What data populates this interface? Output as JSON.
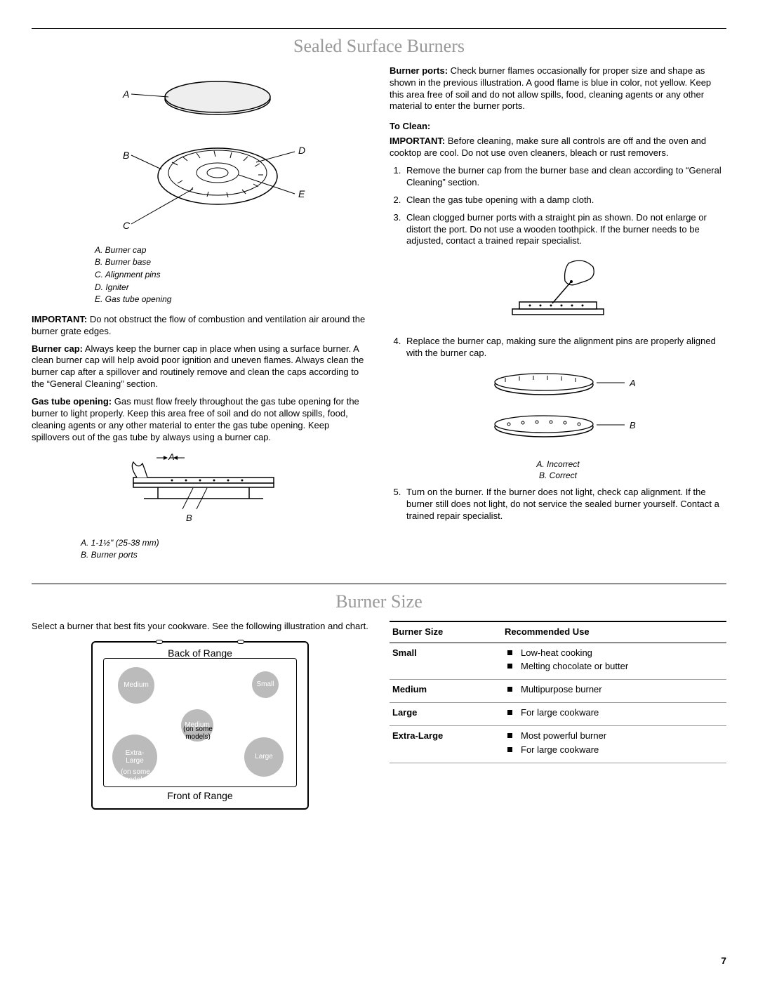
{
  "section1": {
    "title": "Sealed Surface Burners",
    "diagram1": {
      "labels": {
        "A": "A",
        "B": "B",
        "C": "C",
        "D": "D",
        "E": "E"
      },
      "legend": [
        "A. Burner cap",
        "B. Burner base",
        "C. Alignment pins",
        "D. Igniter",
        "E. Gas tube opening"
      ]
    },
    "left_paras": [
      {
        "lead": "IMPORTANT:",
        "text": " Do not obstruct the flow of combustion and ventilation air around the burner grate edges."
      },
      {
        "lead": "Burner cap:",
        "text": " Always keep the burner cap in place when using a surface burner. A clean burner cap will help avoid poor ignition and uneven flames. Always clean the burner cap after a spillover and routinely remove and clean the caps according to the “General Cleaning” section."
      },
      {
        "lead": "Gas tube opening:",
        "text": " Gas must flow freely throughout the gas tube opening for the burner to light properly. Keep this area free of soil and do not allow spills, food, cleaning agents or any other material to enter the gas tube opening. Keep spillovers out of the gas tube by always using a burner cap."
      }
    ],
    "diagram2": {
      "A": "A",
      "B": "B",
      "legend": [
        "A. 1-1½\" (25-38 mm)",
        "B. Burner ports"
      ]
    },
    "right_paras": [
      {
        "lead": "Burner ports:",
        "text": " Check burner flames occasionally for proper size and shape as shown in the previous illustration. A good flame is blue in color, not yellow. Keep this area free of soil and do not allow spills, food, cleaning agents or any other material to enter the burner ports."
      }
    ],
    "to_clean_head": "To Clean:",
    "to_clean_important": {
      "lead": "IMPORTANT:",
      "text": " Before cleaning, make sure all controls are off and the oven and cooktop are cool. Do not use oven cleaners, bleach or rust removers."
    },
    "clean_steps": [
      "Remove the burner cap from the burner base and clean according to “General Cleaning” section.",
      "Clean the gas tube opening with a damp cloth.",
      "Clean clogged burner ports with a straight pin as shown. Do not enlarge or distort the port. Do not use a wooden toothpick. If the burner needs to be adjusted, contact a trained repair specialist.",
      "Replace the burner cap, making sure the alignment pins are properly aligned with the burner cap.",
      "Turn on the burner. If the burner does not light, check cap alignment. If the burner still does not light, do not service the sealed burner yourself. Contact a trained repair specialist."
    ],
    "align_diagram": {
      "A": "A",
      "B": "B",
      "legend": [
        "A. Incorrect",
        "B. Correct"
      ]
    }
  },
  "section2": {
    "title": "Burner Size",
    "intro": "Select a burner that best fits your cookware. See the following illustration and chart.",
    "range": {
      "back": "Back of Range",
      "front": "Front of Range",
      "burners": {
        "medium1": "Medium",
        "small": "Small",
        "medium2": "Medium",
        "extra": "Extra-\nLarge",
        "large": "Large"
      },
      "note1": "(on some\nmodels)",
      "note2": "(on some\nmodels)"
    },
    "table": {
      "headers": [
        "Burner Size",
        "Recommended Use"
      ],
      "rows": [
        {
          "size": "Small",
          "uses": [
            "Low-heat cooking",
            "Melting chocolate or butter"
          ]
        },
        {
          "size": "Medium",
          "uses": [
            "Multipurpose burner"
          ]
        },
        {
          "size": "Large",
          "uses": [
            "For large cookware"
          ]
        },
        {
          "size": "Extra-Large",
          "uses": [
            "Most powerful burner",
            "For large cookware"
          ]
        }
      ]
    }
  },
  "page_number": "7"
}
